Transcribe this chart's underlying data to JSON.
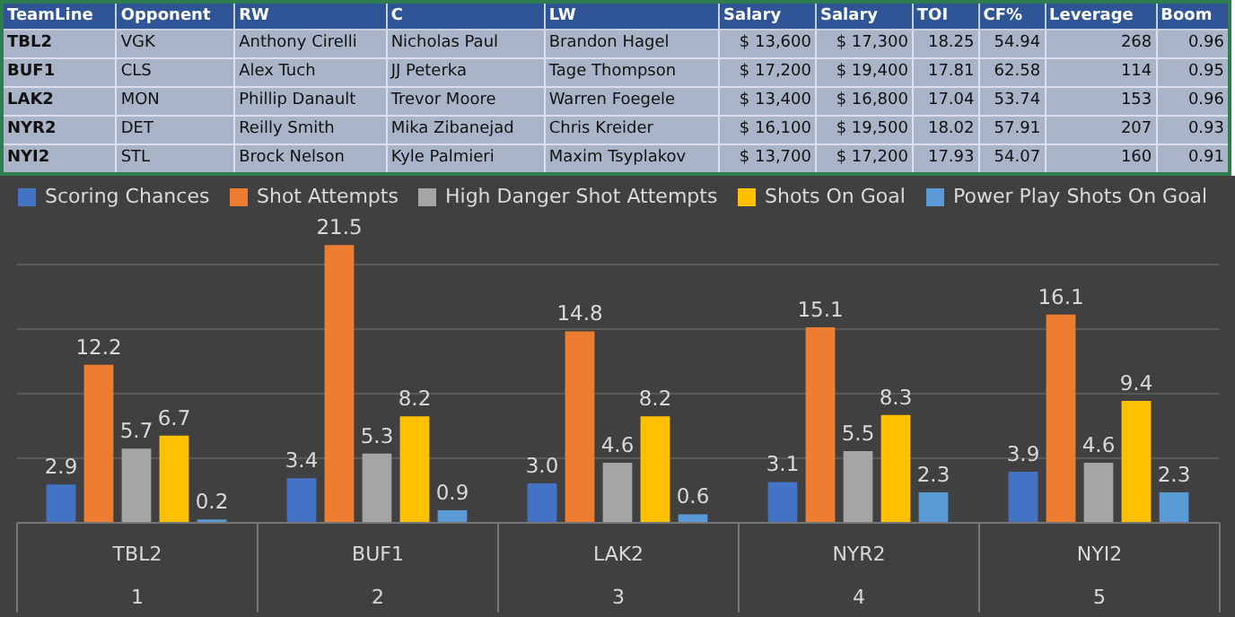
{
  "chart_data": [
    {
      "type": "other",
      "categories": [
        "TeamLine",
        "Opponent",
        "RW",
        "C",
        "LW",
        "Salary",
        "Salary",
        "TOI",
        "CF%",
        "Leverage",
        "Boom"
      ],
      "cell_labels": [
        [
          "TBL2",
          "VGK",
          "Anthony Cirelli",
          "Nicholas Paul",
          "Brandon Hagel",
          "$ 13,600",
          "$ 17,300",
          "18.25",
          "54.94",
          "268",
          "0.96"
        ],
        [
          "BUF1",
          "CLS",
          "Alex Tuch",
          "JJ Peterka",
          "Tage Thompson",
          "$ 17,200",
          "$ 19,400",
          "17.81",
          "62.58",
          "114",
          "0.95"
        ],
        [
          "LAK2",
          "MON",
          "Phillip Danault",
          "Trevor Moore",
          "Warren Foegele",
          "$ 13,400",
          "$ 16,800",
          "17.04",
          "53.74",
          "153",
          "0.96"
        ],
        [
          "NYR2",
          "DET",
          "Reilly Smith",
          "Mika Zibanejad",
          "Chris Kreider",
          "$ 16,100",
          "$ 19,500",
          "18.02",
          "57.91",
          "207",
          "0.93"
        ],
        [
          "NYI2",
          "STL",
          "Brock Nelson",
          "Kyle Palmieri",
          "Maxim Tsyplakov",
          "$ 13,700",
          "$ 17,200",
          "17.93",
          "54.07",
          "160",
          "0.91"
        ]
      ]
    },
    {
      "type": "bar",
      "categories": [
        "TBL2",
        "BUF1",
        "LAK2",
        "NYR2",
        "NYI2"
      ],
      "series": [
        {
          "name": "Scoring Chances",
          "color": "#4472c4",
          "values": [
            2.9,
            3.4,
            3.0,
            3.1,
            3.9
          ],
          "value_labels": [
            "2.9",
            "3.4",
            "3.0",
            "3.1",
            "3.9"
          ]
        },
        {
          "name": "Shot Attempts",
          "color": "#ed7d31",
          "values": [
            12.2,
            21.5,
            14.8,
            15.1,
            16.1
          ],
          "value_labels": [
            "12.2",
            "21.5",
            "14.8",
            "15.1",
            "16.1"
          ]
        },
        {
          "name": "High Danger Shot Attempts",
          "color": "#a5a5a5",
          "values": [
            5.7,
            5.3,
            4.6,
            5.5,
            4.6
          ],
          "value_labels": [
            "5.7",
            "5.3",
            "4.6",
            "5.5",
            "4.6"
          ]
        },
        {
          "name": "Shots On Goal",
          "color": "#ffc000",
          "values": [
            6.7,
            8.2,
            8.2,
            8.3,
            9.4
          ],
          "value_labels": [
            "6.7",
            "8.2",
            "8.2",
            "8.3",
            "9.4"
          ]
        },
        {
          "name": "Power Play Shots On Goal",
          "color": "#5b9bd5",
          "values": [
            0.2,
            0.9,
            0.6,
            2.3,
            2.3
          ],
          "value_labels": [
            "0.2",
            "0.9",
            "0.6",
            "2.3",
            "2.3"
          ]
        }
      ],
      "annotations": [
        "1",
        "2",
        "3",
        "4",
        "5"
      ],
      "tick_labels": "x",
      "grid": "y",
      "legend": "top"
    }
  ]
}
